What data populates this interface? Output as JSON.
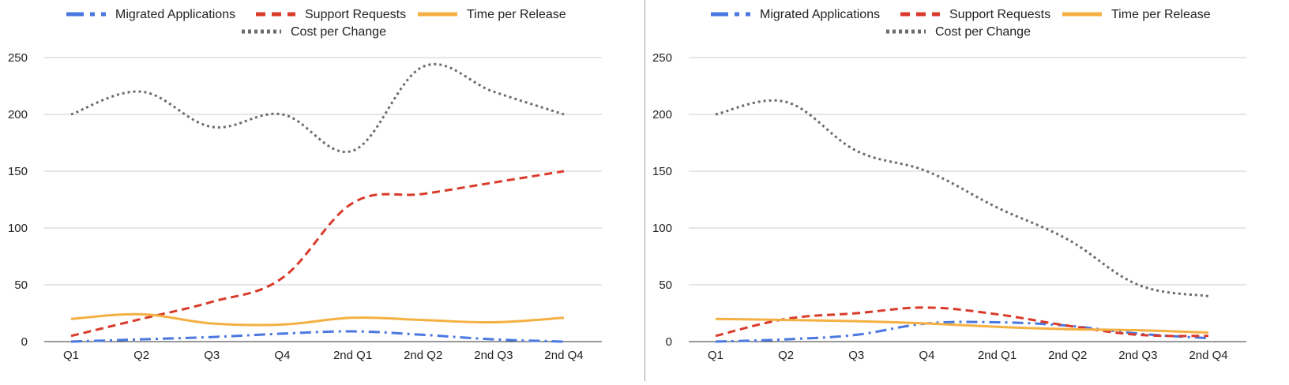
{
  "chart_data": [
    {
      "type": "line",
      "categories": [
        "Q1",
        "Q2",
        "Q3",
        "Q4",
        "2nd Q1",
        "2nd Q2",
        "2nd Q3",
        "2nd Q4"
      ],
      "ylim": [
        0,
        250
      ],
      "yticks": [
        "0",
        "50",
        "100",
        "150",
        "200",
        "250"
      ],
      "grid": true,
      "legend_position": "top",
      "series": [
        {
          "name": "Migrated Applications",
          "color": "#4a78e0",
          "style": "dashdot",
          "values": [
            0,
            2,
            4,
            7,
            9,
            6,
            2,
            0
          ]
        },
        {
          "name": "Support Requests",
          "color": "#d93b2b",
          "style": "dashed",
          "values": [
            5,
            20,
            35,
            56,
            122,
            130,
            140,
            150
          ]
        },
        {
          "name": "Time per Release",
          "color": "#f4b042",
          "style": "solid",
          "values": [
            20,
            24,
            16,
            15,
            21,
            19,
            17,
            21
          ]
        },
        {
          "name": "Cost per Change",
          "color": "#6b6b6b",
          "style": "dotted",
          "values": [
            200,
            220,
            189,
            200,
            168,
            242,
            220,
            200
          ]
        }
      ]
    },
    {
      "type": "line",
      "categories": [
        "Q1",
        "Q2",
        "Q3",
        "Q4",
        "2nd Q1",
        "2nd Q2",
        "2nd Q3",
        "2nd Q4"
      ],
      "ylim": [
        0,
        250
      ],
      "yticks": [
        "0",
        "50",
        "100",
        "150",
        "200",
        "250"
      ],
      "grid": true,
      "legend_position": "top",
      "series": [
        {
          "name": "Migrated Applications",
          "color": "#4a78e0",
          "style": "dashdot",
          "values": [
            0,
            2,
            6,
            16,
            17,
            14,
            7,
            3
          ]
        },
        {
          "name": "Support Requests",
          "color": "#d93b2b",
          "style": "dashed",
          "values": [
            5,
            20,
            25,
            30,
            24,
            14,
            6,
            5
          ]
        },
        {
          "name": "Time per Release",
          "color": "#f4b042",
          "style": "solid",
          "values": [
            20,
            19,
            18,
            16,
            13,
            11,
            10,
            8
          ]
        },
        {
          "name": "Cost per Change",
          "color": "#6b6b6b",
          "style": "dotted",
          "values": [
            200,
            211,
            168,
            150,
            118,
            90,
            50,
            40
          ]
        }
      ]
    }
  ]
}
